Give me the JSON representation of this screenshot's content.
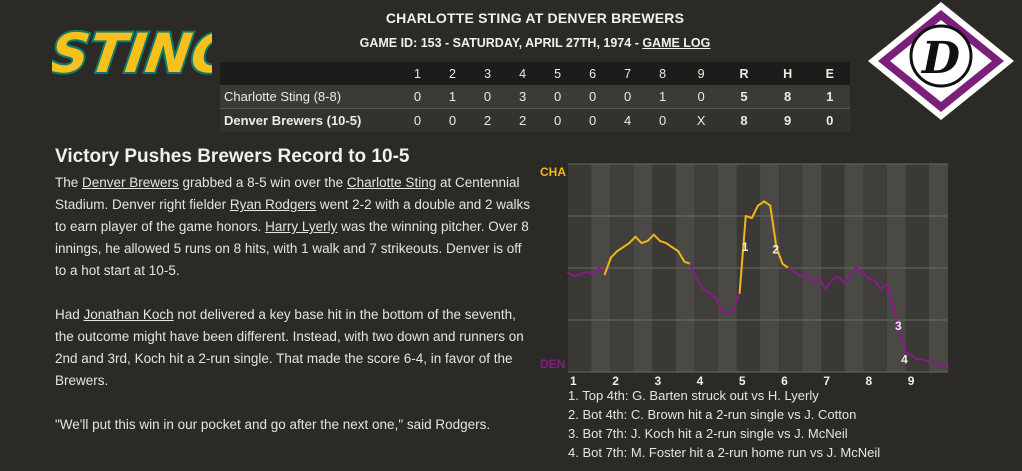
{
  "header": {
    "title": "CHARLOTTE STING AT DENVER BREWERS",
    "subtitle_prefix": "GAME ID: 153 - SATURDAY, APRIL 27TH, 1974 - ",
    "game_log_link": "GAME LOG"
  },
  "logos": {
    "away_text": "STING",
    "home_letter": "D"
  },
  "boxscore": {
    "columns": [
      "1",
      "2",
      "3",
      "4",
      "5",
      "6",
      "7",
      "8",
      "9",
      "R",
      "H",
      "E"
    ],
    "rows": [
      {
        "team": "Charlotte Sting (8-8)",
        "cells": [
          "0",
          "1",
          "0",
          "3",
          "0",
          "0",
          "0",
          "1",
          "0",
          "5",
          "8",
          "1"
        ]
      },
      {
        "team": "Denver Brewers (10-5)",
        "cells": [
          "0",
          "0",
          "2",
          "2",
          "0",
          "0",
          "4",
          "0",
          "X",
          "8",
          "9",
          "0"
        ]
      }
    ]
  },
  "story": {
    "headline": "Victory Pushes Brewers Record to 10-5",
    "p1": {
      "t1": "The ",
      "l1": "Denver Brewers",
      "t2": " grabbed a 8-5 win over the ",
      "l2": "Charlotte Sting",
      "t3": " at Centennial Stadium. Denver right fielder ",
      "l3": "Ryan Rodgers",
      "t4": " went 2-2 with a double and 2 walks to earn player of the game honors. ",
      "l4": "Harry Lyerly",
      "t5": " was the winning pitcher. Over 8 innings, he allowed 5 runs on 8 hits, with 1 walk and 7 strikeouts. Denver is off to a hot start at 10-5."
    },
    "p2": {
      "t1": "Had ",
      "l1": "Jonathan Koch",
      "t2": " not delivered a key base hit in the bottom of the seventh, the outcome might have been different. Instead, with two down and runners on 2nd and 3rd, Koch hit a 2-run single. That made the score 6-4, in favor of the Brewers."
    },
    "p3": "\"We'll put this win in our pocket and go after the next one,\" said Rodgers."
  },
  "chart_data": {
    "type": "line",
    "top_label": "CHA",
    "bottom_label": "DEN",
    "innings": [
      "1",
      "2",
      "3",
      "4",
      "5",
      "6",
      "7",
      "8",
      "9"
    ],
    "away_color": "#f4b41a",
    "home_color": "#8a1a8a",
    "ylim": [
      0,
      1
    ],
    "values": [
      0.48,
      0.46,
      0.47,
      0.48,
      0.47,
      0.5,
      0.47,
      0.55,
      0.58,
      0.6,
      0.62,
      0.65,
      0.62,
      0.63,
      0.66,
      0.63,
      0.62,
      0.6,
      0.58,
      0.53,
      0.52,
      0.45,
      0.4,
      0.38,
      0.36,
      0.3,
      0.28,
      0.3,
      0.38,
      0.75,
      0.74,
      0.8,
      0.82,
      0.8,
      0.6,
      0.52,
      0.5,
      0.48,
      0.46,
      0.47,
      0.43,
      0.45,
      0.4,
      0.44,
      0.46,
      0.43,
      0.46,
      0.5,
      0.48,
      0.45,
      0.44,
      0.4,
      0.42,
      0.32,
      0.2,
      0.1,
      0.08,
      0.06,
      0.06,
      0.05,
      0.04,
      0.03,
      0.02
    ],
    "markers": [
      {
        "label": "1",
        "x": 29,
        "y": 0.6
      },
      {
        "label": "2",
        "x": 34,
        "y": 0.59
      },
      {
        "label": "3",
        "x": 54,
        "y": 0.22
      },
      {
        "label": "4",
        "x": 55,
        "y": 0.06
      }
    ]
  },
  "key_plays": [
    "1. Top 4th: G. Barten struck out vs H. Lyerly",
    "2. Bot 4th: C. Brown hit a 2-run single vs J. Cotton",
    "3. Bot 7th: J. Koch hit a 2-run single vs J. McNeil",
    "4. Bot 7th: M. Foster hit a 2-run home run vs J. McNeil"
  ]
}
